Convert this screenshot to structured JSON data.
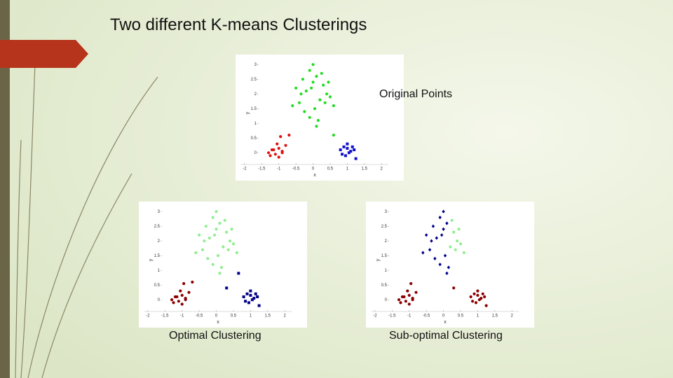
{
  "title": "Two different K-means Clusterings",
  "chart_data": [
    {
      "type": "scatter",
      "caption": "Original Points",
      "xlabel": "x",
      "ylabel": "y",
      "xlim": [
        -2.1,
        2.2
      ],
      "ylim": [
        -0.4,
        3.1
      ],
      "xticks": [
        -2,
        -1.5,
        -1,
        -0.5,
        0,
        0.5,
        1,
        1.5,
        2
      ],
      "yticks": [
        0,
        0.5,
        1,
        1.5,
        2,
        2.5,
        3
      ],
      "series": [
        {
          "color": "#22dd22",
          "marker": "circle",
          "x": [
            -0.5,
            -0.3,
            -0.1,
            0.1,
            0.3,
            0.5,
            -0.4,
            -0.2,
            0,
            0.2,
            0.4,
            -0.6,
            -0.25,
            0.05,
            0.35,
            0.6,
            -0.1,
            0.15,
            0,
            -0.35,
            0.25,
            -0.05,
            0.45,
            0.1,
            0.6
          ],
          "y": [
            2.2,
            2.5,
            2.8,
            2.6,
            2.3,
            1.9,
            1.7,
            2.1,
            2.4,
            1.8,
            2,
            1.6,
            1.4,
            1.5,
            1.7,
            1.6,
            1.2,
            1.1,
            3,
            2,
            2.7,
            2.2,
            2.4,
            0.9,
            0.6
          ]
        },
        {
          "color": "#dd1111",
          "marker": "circle",
          "x": [
            -1.3,
            -1.2,
            -1.1,
            -1,
            -0.9,
            -1.25,
            -1.05,
            -0.95,
            -1.15,
            -0.8,
            -1,
            -0.9,
            -0.7
          ],
          "y": [
            0,
            0.1,
            -0.05,
            0.15,
            0.05,
            -0.1,
            0.3,
            0.55,
            0.1,
            0.25,
            -0.15,
            0,
            0.6
          ]
        },
        {
          "color": "#1111cc",
          "marker": "square",
          "x": [
            0.8,
            0.9,
            1,
            1.1,
            1.2,
            0.85,
            1.05,
            1.15,
            0.95,
            1.25,
            1
          ],
          "y": [
            0.1,
            0.2,
            0.15,
            0.05,
            0.1,
            -0.05,
            0,
            0.2,
            -0.1,
            -0.2,
            0.3
          ]
        }
      ]
    },
    {
      "type": "scatter",
      "caption": "Optimal Clustering",
      "xlabel": "x",
      "ylabel": "y",
      "xlim": [
        -2.1,
        2.2
      ],
      "ylim": [
        -0.4,
        3.1
      ],
      "xticks": [
        -2,
        -1.5,
        -1,
        -0.5,
        0,
        0.5,
        1,
        1.5,
        2
      ],
      "yticks": [
        0,
        0.5,
        1,
        1.5,
        2,
        2.5,
        3
      ],
      "series": [
        {
          "color": "#90ee90",
          "marker": "circle",
          "x": [
            -0.5,
            -0.3,
            -0.1,
            0.1,
            0.3,
            0.5,
            -0.4,
            -0.2,
            0,
            0.2,
            0.4,
            -0.6,
            -0.25,
            0.05,
            0.35,
            0.6,
            -0.1,
            0.15,
            0,
            -0.35,
            0.25,
            -0.05,
            0.45,
            0.1
          ],
          "y": [
            2.2,
            2.5,
            2.8,
            2.6,
            2.3,
            1.9,
            1.7,
            2.1,
            2.4,
            1.8,
            2,
            1.6,
            1.4,
            1.5,
            1.7,
            1.6,
            1.2,
            1.1,
            3,
            2,
            2.7,
            2.2,
            2.4,
            0.9
          ]
        },
        {
          "color": "#8b0000",
          "marker": "circle",
          "x": [
            -1.3,
            -1.2,
            -1.1,
            -1,
            -0.9,
            -1.25,
            -1.05,
            -0.95,
            -1.15,
            -0.8,
            -1,
            -0.9,
            -0.7
          ],
          "y": [
            0,
            0.1,
            -0.05,
            0.15,
            0.05,
            -0.1,
            0.3,
            0.55,
            0.1,
            0.25,
            -0.15,
            0,
            0.6
          ]
        },
        {
          "color": "#00008b",
          "marker": "square",
          "x": [
            0.8,
            0.9,
            1,
            1.1,
            1.2,
            0.85,
            1.05,
            1.15,
            0.95,
            1.25,
            1,
            0.65,
            0.3
          ],
          "y": [
            0.1,
            0.2,
            0.15,
            0.05,
            0.1,
            -0.05,
            0,
            0.2,
            -0.1,
            -0.2,
            0.3,
            0.9,
            0.4
          ]
        }
      ]
    },
    {
      "type": "scatter",
      "caption": "Sub-optimal Clustering",
      "xlabel": "x",
      "ylabel": "y",
      "xlim": [
        -2.1,
        2.2
      ],
      "ylim": [
        -0.4,
        3.1
      ],
      "xticks": [
        -2,
        -1.5,
        -1,
        -0.5,
        0,
        0.5,
        1,
        1.5,
        2
      ],
      "yticks": [
        0,
        0.5,
        1,
        1.5,
        2,
        2.5,
        3
      ],
      "series": [
        {
          "color": "#00008b",
          "marker": "diamond",
          "x": [
            -0.5,
            -0.3,
            -0.1,
            0.1,
            -0.4,
            -0.2,
            0,
            -0.6,
            -0.25,
            0.05,
            -0.1,
            0.15,
            0,
            -0.35,
            -0.05,
            0.1
          ],
          "y": [
            2.2,
            2.5,
            2.8,
            2.6,
            1.7,
            2.1,
            2.4,
            1.6,
            1.4,
            1.5,
            1.2,
            1.1,
            3,
            2,
            2.2,
            0.9
          ]
        },
        {
          "color": "#90ee90",
          "marker": "circle",
          "x": [
            0.3,
            0.5,
            0.2,
            0.4,
            0.35,
            0.6,
            0.25,
            0.45
          ],
          "y": [
            2.3,
            1.9,
            1.8,
            2,
            1.7,
            1.6,
            2.7,
            2.4
          ]
        },
        {
          "color": "#8b0000",
          "marker": "circle",
          "x": [
            -1.3,
            -1.2,
            -1.1,
            -1,
            -0.9,
            -1.25,
            -1.05,
            -0.95,
            -1.15,
            -0.8,
            -1,
            -0.9,
            0.8,
            0.9,
            1,
            1.1,
            1.2,
            0.85,
            1.05,
            1.15,
            0.95,
            1.25,
            1,
            0.3
          ],
          "y": [
            0,
            0.1,
            -0.05,
            0.15,
            0.05,
            -0.1,
            0.3,
            0.55,
            0.1,
            0.25,
            -0.15,
            0,
            0.1,
            0.2,
            0.15,
            0.05,
            0.1,
            -0.05,
            0,
            0.2,
            -0.1,
            -0.2,
            0.3,
            0.4
          ]
        }
      ]
    }
  ]
}
